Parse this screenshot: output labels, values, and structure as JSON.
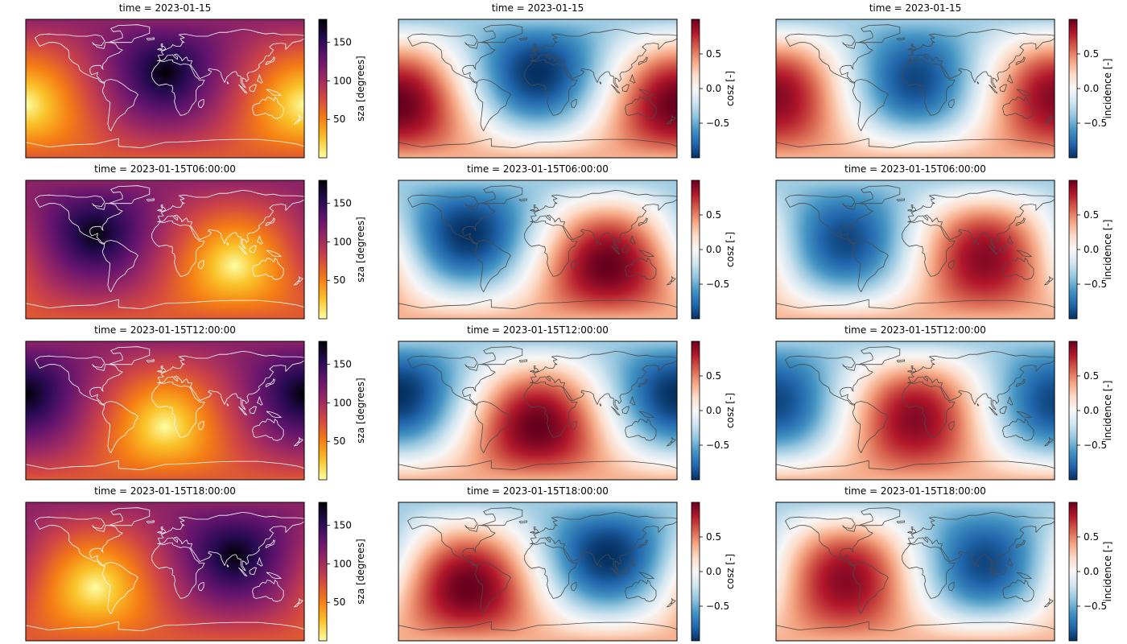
{
  "chart_data": {
    "type": "heatmap",
    "rows": [
      {
        "time": "2023-01-15",
        "subsolar_lon": 180
      },
      {
        "time": "2023-01-15T06:00:00",
        "subsolar_lon": 90
      },
      {
        "time": "2023-01-15T12:00:00",
        "subsolar_lon": 0
      },
      {
        "time": "2023-01-15T18:00:00",
        "subsolar_lon": -90
      }
    ],
    "subsolar_lat": -21,
    "columns": [
      {
        "variable": "sza",
        "colorbar_label": "sza [degrees]",
        "colormap": "inferno_r",
        "coastline_color": "#ffffff",
        "range": [
          0,
          180
        ],
        "ticks": [
          50,
          100,
          150
        ],
        "tick_labels": [
          "50",
          "100",
          "150"
        ]
      },
      {
        "variable": "cosz",
        "colorbar_label": "cosz [-]",
        "colormap": "RdBu_r",
        "coastline_color": "#4a4a4a",
        "range": [
          -1,
          1
        ],
        "ticks": [
          -0.5,
          0.0,
          0.5
        ],
        "tick_labels": [
          "−0.5",
          "0.0",
          "0.5"
        ]
      },
      {
        "variable": "incidence",
        "colorbar_label": "incidence [-]",
        "colormap": "RdBu_r",
        "coastline_color": "#4a4a4a",
        "range": [
          -1,
          1
        ],
        "ticks": [
          -0.5,
          0.0,
          0.5
        ],
        "tick_labels": [
          "−0.5",
          "0.0",
          "0.5"
        ]
      }
    ]
  }
}
